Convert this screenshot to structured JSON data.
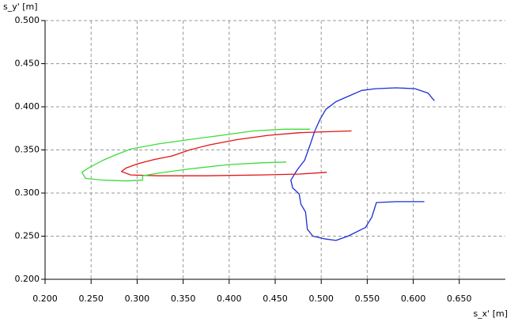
{
  "chart_data": {
    "type": "line",
    "x_label": "s_x' [m]",
    "y_label": "s_y' [m]",
    "xlim": [
      0.2,
      0.7
    ],
    "ylim": [
      0.2,
      0.5
    ],
    "xticks": [
      {
        "value": 0.2,
        "label": "0.200"
      },
      {
        "value": 0.25,
        "label": "0.250"
      },
      {
        "value": 0.3,
        "label": "0.300"
      },
      {
        "value": 0.35,
        "label": "0.350"
      },
      {
        "value": 0.4,
        "label": "0.400"
      },
      {
        "value": 0.45,
        "label": "0.450"
      },
      {
        "value": 0.5,
        "label": "0.500"
      },
      {
        "value": 0.55,
        "label": "0.550"
      },
      {
        "value": 0.6,
        "label": "0.600"
      },
      {
        "value": 0.65,
        "label": "0.650"
      }
    ],
    "yticks": [
      {
        "value": 0.2,
        "label": "0.200"
      },
      {
        "value": 0.25,
        "label": "0.250"
      },
      {
        "value": 0.3,
        "label": "0.300"
      },
      {
        "value": 0.35,
        "label": "0.350"
      },
      {
        "value": 0.4,
        "label": "0.400"
      },
      {
        "value": 0.45,
        "label": "0.450"
      },
      {
        "value": 0.5,
        "label": "0.500"
      }
    ],
    "grid": true,
    "series": [
      {
        "color": "#1c2fd6",
        "x": [
          0.623,
          0.616,
          0.602,
          0.581,
          0.559,
          0.544,
          0.529,
          0.516,
          0.505,
          0.499,
          0.493,
          0.488,
          0.482,
          0.474,
          0.467,
          0.469,
          0.476,
          0.478,
          0.483,
          0.485,
          0.491,
          0.503,
          0.516,
          0.529,
          0.548,
          0.555,
          0.56,
          0.581,
          0.612
        ],
        "values": [
          0.407,
          0.416,
          0.421,
          0.422,
          0.421,
          0.419,
          0.412,
          0.406,
          0.397,
          0.386,
          0.372,
          0.356,
          0.338,
          0.327,
          0.315,
          0.306,
          0.299,
          0.287,
          0.278,
          0.258,
          0.25,
          0.247,
          0.245,
          0.25,
          0.26,
          0.272,
          0.289,
          0.29,
          0.29
        ]
      },
      {
        "color": "#e01414",
        "x": [
          0.533,
          0.503,
          0.477,
          0.443,
          0.409,
          0.379,
          0.357,
          0.338,
          0.319,
          0.301,
          0.288,
          0.283,
          0.293,
          0.323,
          0.374,
          0.435,
          0.477,
          0.506
        ],
        "values": [
          0.372,
          0.371,
          0.37,
          0.367,
          0.362,
          0.356,
          0.35,
          0.343,
          0.339,
          0.334,
          0.329,
          0.325,
          0.321,
          0.32,
          0.32,
          0.321,
          0.322,
          0.324
        ]
      },
      {
        "color": "#3cdc3c",
        "x": [
          0.488,
          0.46,
          0.426,
          0.392,
          0.357,
          0.323,
          0.293,
          0.276,
          0.263,
          0.247,
          0.24,
          0.244,
          0.263,
          0.288,
          0.306,
          0.306,
          0.323,
          0.357,
          0.4,
          0.435,
          0.462
        ],
        "values": [
          0.374,
          0.374,
          0.372,
          0.367,
          0.362,
          0.357,
          0.351,
          0.344,
          0.338,
          0.329,
          0.324,
          0.317,
          0.315,
          0.314,
          0.315,
          0.32,
          0.323,
          0.328,
          0.333,
          0.335,
          0.336
        ]
      }
    ]
  }
}
